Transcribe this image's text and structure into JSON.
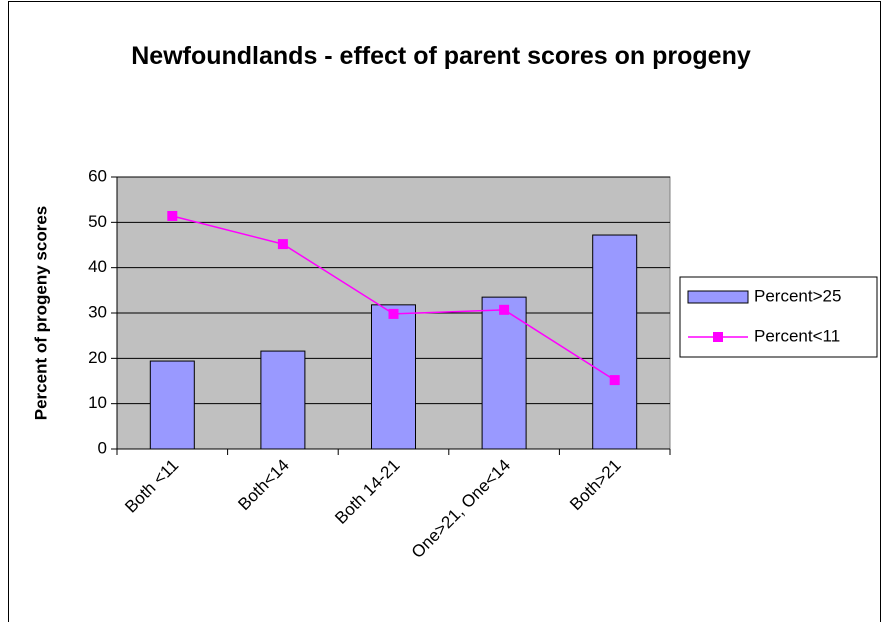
{
  "chart_data": {
    "type": "bar",
    "title": "Newfoundlands - effect of parent scores on progeny",
    "y_label": "Percent of progeny scores",
    "categories": [
      "Both <11",
      "Both<14",
      "Both 14-21",
      "One>21, One<14",
      "Both>21"
    ],
    "series": [
      {
        "name": "Percent>25",
        "type": "bar",
        "color": "#9999ff",
        "values": [
          19.4,
          21.6,
          31.8,
          33.5,
          47.2
        ]
      },
      {
        "name": "Percent<11",
        "type": "line",
        "color": "#ff00ff",
        "values": [
          51.4,
          45.2,
          29.8,
          30.7,
          15.2
        ]
      }
    ],
    "ylim": [
      0,
      60
    ],
    "yticks": [
      0,
      10,
      20,
      30,
      40,
      50,
      60
    ],
    "grid": true,
    "legend": "right"
  }
}
